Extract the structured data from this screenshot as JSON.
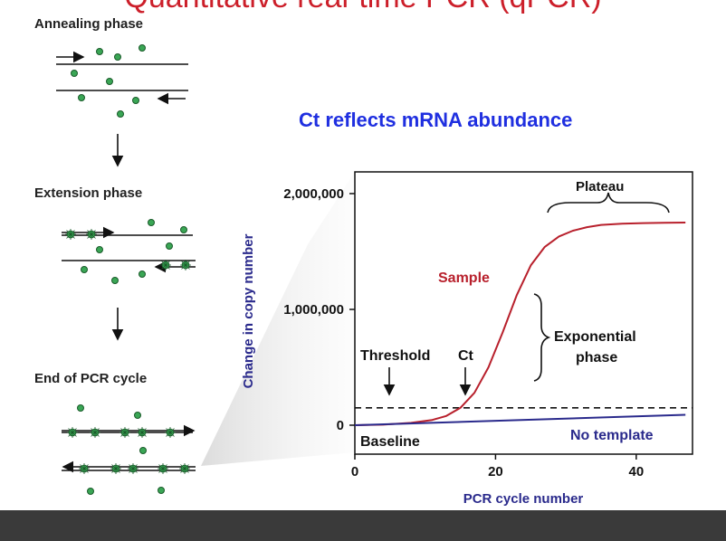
{
  "slide": {
    "title": "Quantitative real-time PCR (qPCR)"
  },
  "phases": {
    "annealing": "Annealing phase",
    "extension": "Extension phase",
    "end": "End of PCR cycle"
  },
  "subtitle": "Ct reflects mRNA abundance",
  "colors": {
    "title": "#cc1f2a",
    "subtitle": "#1f2fe0",
    "sample": "#b8202c",
    "no_template": "#2a2a8c",
    "dye": "#3aa655"
  },
  "chart_data": {
    "type": "line",
    "xlabel": "PCR cycle number",
    "ylabel": "Change in copy number",
    "xlim": [
      0,
      48
    ],
    "ylim": [
      0,
      2000000
    ],
    "xticks": [
      0,
      20,
      40
    ],
    "ytick_labels": [
      "0",
      "1,000,000",
      "2,000,000"
    ],
    "yticks": [
      0,
      1000000,
      2000000
    ],
    "threshold": 150000,
    "series": [
      {
        "name": "Sample",
        "color": "#b8202c",
        "x": [
          0,
          4,
          8,
          11,
          13,
          15,
          17,
          19,
          21,
          23,
          25,
          27,
          29,
          31,
          33,
          35,
          38,
          41,
          44,
          47
        ],
        "y": [
          0,
          5000,
          20000,
          45000,
          80000,
          150000,
          280000,
          500000,
          800000,
          1120000,
          1380000,
          1540000,
          1630000,
          1680000,
          1710000,
          1730000,
          1740000,
          1745000,
          1748000,
          1750000
        ]
      },
      {
        "name": "No template",
        "color": "#2a2a8c",
        "x": [
          0,
          47
        ],
        "y": [
          0,
          90000
        ]
      }
    ],
    "annotations": {
      "plateau": "Plateau",
      "sample": "Sample",
      "exponential_1": "Exponential",
      "exponential_2": "phase",
      "threshold": "Threshold",
      "ct": "Ct",
      "baseline": "Baseline",
      "no_template": "No template"
    }
  }
}
